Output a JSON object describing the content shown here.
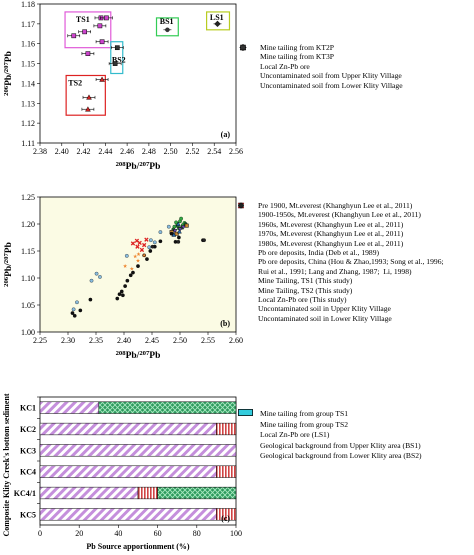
{
  "chart_data": [
    {
      "type": "scatter",
      "panel_label": "(a)",
      "xlabel": "208Pb/207Pb",
      "ylabel": "206Pb/207Pb",
      "xlim": [
        2.38,
        2.56
      ],
      "ylim": [
        1.11,
        1.18
      ],
      "xticks": [
        "2.38",
        "2.40",
        "2.42",
        "2.44",
        "2.46",
        "2.48",
        "2.50",
        "2.52",
        "2.54",
        "2.56"
      ],
      "yticks": [
        "1.11",
        "1.12",
        "1.13",
        "1.14",
        "1.15",
        "1.16",
        "1.17",
        "1.18"
      ],
      "group_boxes": [
        {
          "label": "TS1",
          "color": "#e05ad8",
          "x": [
            2.403,
            2.445
          ],
          "y": [
            1.158,
            1.176
          ]
        },
        {
          "label": "BS1",
          "color": "#33cc55",
          "x": [
            2.487,
            2.507
          ],
          "y": [
            1.164,
            1.173
          ]
        },
        {
          "label": "LS1",
          "color": "#b8cc22",
          "x": [
            2.533,
            2.554
          ],
          "y": [
            1.167,
            1.176
          ]
        },
        {
          "label": "BS2",
          "color": "#33bbcc",
          "x": [
            2.445,
            2.456
          ],
          "y": [
            1.145,
            1.161
          ]
        },
        {
          "label": "TS2",
          "color": "#dd2222",
          "x": [
            2.404,
            2.44
          ],
          "y": [
            1.124,
            1.144
          ]
        }
      ],
      "series": [
        {
          "name": "Mine tailing from KT2P",
          "marker": "square",
          "color": "#cc44cc",
          "points": [
            [
              2.436,
              1.173
            ],
            [
              2.441,
              1.173
            ],
            [
              2.435,
              1.169
            ],
            [
              2.421,
              1.166
            ],
            [
              2.411,
              1.164
            ],
            [
              2.437,
              1.161
            ],
            [
              2.424,
              1.155
            ]
          ]
        },
        {
          "name": "Mine tailing from KT3P",
          "marker": "triangle",
          "color": "#cc2222",
          "points": [
            [
              2.437,
              1.142
            ],
            [
              2.425,
              1.133
            ],
            [
              2.424,
              1.127
            ]
          ]
        },
        {
          "name": "Local Zn-Pb ore",
          "marker": "diamond",
          "color": "#222222",
          "points": [
            [
              2.543,
              1.17
            ]
          ]
        },
        {
          "name": "Uncontaminated soil from Upper Klity Village",
          "marker": "circle",
          "color": "#333333",
          "points": [
            [
              2.497,
              1.167
            ]
          ]
        },
        {
          "name": "Uncontaminated soil from Lower Klity Village",
          "marker": "square",
          "color": "#333333",
          "points": [
            [
              2.451,
              1.158
            ],
            [
              2.449,
              1.15
            ]
          ]
        }
      ]
    },
    {
      "type": "scatter",
      "panel_label": "(b)",
      "xlabel": "208Pb/207Pb",
      "ylabel": "206Pb/207Pb",
      "xlim": [
        2.25,
        2.6
      ],
      "ylim": [
        1.0,
        1.25
      ],
      "xticks": [
        "2.25",
        "2.30",
        "2.35",
        "2.40",
        "2.45",
        "2.50",
        "2.55",
        "2.60"
      ],
      "yticks": [
        "1.00",
        "1.05",
        "1.10",
        "1.15",
        "1.20",
        "1.25"
      ],
      "series": [
        {
          "name": "Pre 1900, Mt.everest (Khanghyun Lee et al., 2011)",
          "marker": "circle",
          "color": "#33aa44",
          "points": [
            [
              2.49,
              1.195
            ],
            [
              2.495,
              1.2
            ],
            [
              2.5,
              1.205
            ],
            [
              2.505,
              1.198
            ],
            [
              2.498,
              1.192
            ],
            [
              2.493,
              1.203
            ],
            [
              2.508,
              1.202
            ],
            [
              2.502,
              1.21
            ]
          ]
        },
        {
          "name": "1900-1950s, Mt.everest (Khanghyun Lee et al., 2011)",
          "marker": "circle",
          "color": "#226633",
          "points": [
            [
              2.488,
              1.19
            ],
            [
              2.496,
              1.196
            ],
            [
              2.503,
              1.193
            ],
            [
              2.51,
              1.2
            ]
          ]
        },
        {
          "name": "1960s, Mt.everest (Khanghyun Lee et al., 2011)",
          "marker": "triangle-down",
          "color": "#6644aa",
          "points": [
            [
              2.491,
              1.187
            ],
            [
              2.5,
              1.19
            ],
            [
              2.506,
              1.194
            ]
          ]
        },
        {
          "name": "1970s, Mt.everest (Khanghyun Lee et al., 2011)",
          "marker": "square",
          "color": "#cc8833",
          "points": [
            [
              2.485,
              1.185
            ],
            [
              2.494,
              1.182
            ],
            [
              2.512,
              1.197
            ]
          ]
        },
        {
          "name": "1980s, Mt.everest (Khanghyun Lee et al., 2011)",
          "marker": "triangle",
          "color": "#2266aa",
          "points": [
            [
              2.489,
              1.18
            ],
            [
              2.499,
              1.186
            ],
            [
              2.497,
              1.2
            ]
          ]
        },
        {
          "name": "Pb ore deposits, India (Deb et al., 1989)",
          "marker": "circle",
          "color": "#88bbdd",
          "points": [
            [
              2.31,
              1.042
            ],
            [
              2.316,
              1.055
            ],
            [
              2.342,
              1.095
            ],
            [
              2.351,
              1.108
            ],
            [
              2.357,
              1.102
            ],
            [
              2.405,
              1.141
            ],
            [
              2.445,
              1.157
            ],
            [
              2.465,
              1.185
            ],
            [
              2.48,
              1.195
            ],
            [
              2.448,
              1.17
            ],
            [
              2.455,
              1.166
            ]
          ]
        },
        {
          "name": "Pb ore deposits, China (Hou & Zhao,1993; Song et al., 1996;\nRui et al., 1991; Lang and Zhang, 1987;  Li, 1998)",
          "marker": "circle",
          "color": "#111111",
          "points": [
            [
              2.308,
              1.035
            ],
            [
              2.312,
              1.03
            ],
            [
              2.322,
              1.04
            ],
            [
              2.34,
              1.06
            ],
            [
              2.388,
              1.062
            ],
            [
              2.392,
              1.07
            ],
            [
              2.396,
              1.075
            ],
            [
              2.398,
              1.068
            ],
            [
              2.402,
              1.085
            ],
            [
              2.406,
              1.095
            ],
            [
              2.412,
              1.105
            ],
            [
              2.416,
              1.11
            ],
            [
              2.425,
              1.122
            ],
            [
              2.436,
              1.142
            ],
            [
              2.441,
              1.135
            ],
            [
              2.447,
              1.15
            ],
            [
              2.455,
              1.158
            ],
            [
              2.465,
              1.168
            ],
            [
              2.485,
              1.182
            ],
            [
              2.492,
              1.167
            ],
            [
              2.498,
              1.175
            ],
            [
              2.541,
              1.17
            ]
          ]
        },
        {
          "name": "Mine Tailing, TS1 (This study)",
          "marker": "star",
          "color": "#ee8833",
          "points": [
            [
              2.402,
              1.122
            ],
            [
              2.414,
              1.117
            ],
            [
              2.42,
              1.14
            ],
            [
              2.425,
              1.132
            ],
            [
              2.436,
              1.142
            ],
            [
              2.426,
              1.144
            ]
          ]
        },
        {
          "name": "Mine Tailing, TS2 (This study)",
          "marker": "cross",
          "color": "#dd2222",
          "points": [
            [
              2.416,
              1.164
            ],
            [
              2.424,
              1.158
            ],
            [
              2.428,
              1.165
            ],
            [
              2.436,
              1.161
            ],
            [
              2.432,
              1.152
            ],
            [
              2.423,
              1.169
            ],
            [
              2.44,
              1.171
            ]
          ]
        },
        {
          "name": "Local Zn-Pb ore (This study)",
          "marker": "circle",
          "color": "#222222",
          "points": [
            [
              2.543,
              1.17
            ]
          ]
        },
        {
          "name": "Uncontaminated soil in Upper Klity Village",
          "marker": "circle",
          "color": "#222222",
          "points": [
            [
              2.497,
              1.167
            ]
          ]
        },
        {
          "name": "Uncontaminated soil in Lower Klity Village",
          "marker": "circle",
          "color": "#222222",
          "points": [
            [
              2.451,
              1.158
            ]
          ]
        }
      ]
    },
    {
      "type": "bar",
      "orientation": "horizontal",
      "stacked": true,
      "panel_label": "(c)",
      "xlabel": "Pb Source apportionment (%)",
      "ylabel": "Composite Klity Creek's bottom sediment",
      "xlim": [
        0,
        100
      ],
      "xticks": [
        "0",
        "20",
        "40",
        "60",
        "80",
        "100"
      ],
      "categories": [
        "KC1",
        "KC2",
        "KC3",
        "KC4",
        "KC4/1",
        "KC5"
      ],
      "series": [
        {
          "name": "Mine tailing from group TS1",
          "color": "#d9a8e8",
          "pattern": "diag-purple",
          "values": [
            30,
            90,
            100,
            90,
            50,
            90
          ]
        },
        {
          "name": "Mine tailing from group TS2",
          "color": "#e07070",
          "pattern": "vert-red",
          "values": [
            0,
            10,
            0,
            10,
            10,
            10
          ]
        },
        {
          "name": "Local Zn-Pb ore (LS1)",
          "color": "#cccc44",
          "pattern": "solid-olive",
          "values": [
            0,
            0,
            0,
            0,
            0,
            0
          ]
        },
        {
          "name": "Geological background from Upper Klity area (BS1)",
          "color": "#3aa06a",
          "pattern": "cross-green",
          "values": [
            70,
            0,
            0,
            0,
            40,
            0
          ]
        },
        {
          "name": "Geological background from Lower Klity area (BS2)",
          "color": "#33ccdd",
          "pattern": "solid-cyan",
          "values": [
            0,
            0,
            0,
            0,
            0,
            0
          ]
        }
      ]
    }
  ]
}
